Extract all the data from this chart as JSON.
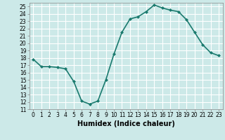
{
  "x": [
    0,
    1,
    2,
    3,
    4,
    5,
    6,
    7,
    8,
    9,
    10,
    11,
    12,
    13,
    14,
    15,
    16,
    17,
    18,
    19,
    20,
    21,
    22,
    23
  ],
  "y": [
    17.8,
    16.8,
    16.8,
    16.7,
    16.5,
    14.8,
    12.1,
    11.7,
    12.1,
    15.0,
    18.5,
    21.5,
    23.3,
    23.6,
    24.3,
    25.2,
    24.8,
    24.5,
    24.3,
    23.2,
    21.5,
    19.8,
    18.7,
    18.3
  ],
  "line_color": "#1a7a6e",
  "marker": "D",
  "marker_size": 2.0,
  "xlabel": "Humidex (Indice chaleur)",
  "ylim": [
    11,
    25.5
  ],
  "xlim": [
    -0.5,
    23.5
  ],
  "yticks": [
    11,
    12,
    13,
    14,
    15,
    16,
    17,
    18,
    19,
    20,
    21,
    22,
    23,
    24,
    25
  ],
  "xticks": [
    0,
    1,
    2,
    3,
    4,
    5,
    6,
    7,
    8,
    9,
    10,
    11,
    12,
    13,
    14,
    15,
    16,
    17,
    18,
    19,
    20,
    21,
    22,
    23
  ],
  "xtick_labels": [
    "0",
    "1",
    "2",
    "3",
    "4",
    "5",
    "6",
    "7",
    "8",
    "9",
    "10",
    "11",
    "12",
    "13",
    "14",
    "15",
    "16",
    "17",
    "18",
    "19",
    "20",
    "21",
    "22",
    "23"
  ],
  "background_color": "#cce9e8",
  "grid_color": "#ffffff",
  "tick_fontsize": 5.5,
  "xlabel_fontsize": 7,
  "line_width": 1.2
}
